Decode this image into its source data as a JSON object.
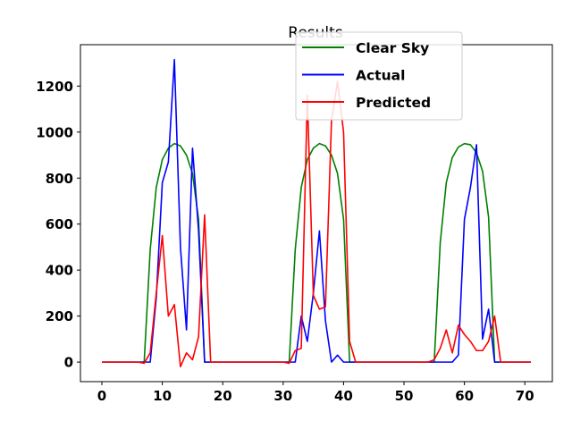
{
  "chart_data": {
    "type": "line",
    "title": "Results",
    "xlabel": "",
    "ylabel": "",
    "xlim": [
      -3.55,
      74.55
    ],
    "ylim": [
      -85,
      1380
    ],
    "xticks": [
      0,
      10,
      20,
      30,
      40,
      50,
      60,
      70
    ],
    "yticks": [
      0,
      200,
      400,
      600,
      800,
      1000,
      1200
    ],
    "legend_position": "top-right",
    "grid": false,
    "series": [
      {
        "name": "Clear Sky",
        "color": "#008000",
        "x": [
          0,
          1,
          2,
          3,
          4,
          5,
          6,
          7,
          8,
          9,
          10,
          11,
          12,
          13,
          14,
          15,
          16,
          17,
          18,
          19,
          20,
          21,
          22,
          23,
          24,
          25,
          26,
          27,
          28,
          29,
          30,
          31,
          32,
          33,
          34,
          35,
          36,
          37,
          38,
          39,
          40,
          41,
          42,
          43,
          44,
          45,
          46,
          47,
          48,
          49,
          50,
          51,
          52,
          53,
          54,
          55,
          56,
          57,
          58,
          59,
          60,
          61,
          62,
          63,
          64,
          65,
          66,
          67,
          68,
          69,
          70,
          71
        ],
        "values": [
          0,
          0,
          0,
          0,
          0,
          0,
          0,
          0,
          490,
          760,
          880,
          930,
          950,
          940,
          900,
          820,
          620,
          0,
          0,
          0,
          0,
          0,
          0,
          0,
          0,
          0,
          0,
          0,
          0,
          0,
          0,
          0,
          490,
          760,
          880,
          930,
          950,
          940,
          900,
          820,
          620,
          0,
          0,
          0,
          0,
          0,
          0,
          0,
          0,
          0,
          0,
          0,
          0,
          0,
          0,
          0,
          520,
          780,
          890,
          935,
          950,
          945,
          910,
          830,
          630,
          0,
          0,
          0,
          0,
          0,
          0,
          0
        ]
      },
      {
        "name": "Actual",
        "color": "#0000ff",
        "x": [
          0,
          1,
          2,
          3,
          4,
          5,
          6,
          7,
          8,
          9,
          10,
          11,
          12,
          13,
          14,
          15,
          16,
          17,
          18,
          19,
          20,
          21,
          22,
          23,
          24,
          25,
          26,
          27,
          28,
          29,
          30,
          31,
          32,
          33,
          34,
          35,
          36,
          37,
          38,
          39,
          40,
          41,
          42,
          43,
          44,
          45,
          46,
          47,
          48,
          49,
          50,
          51,
          52,
          53,
          54,
          55,
          56,
          57,
          58,
          59,
          60,
          61,
          62,
          63,
          64,
          65,
          66,
          67,
          68,
          69,
          70,
          71
        ],
        "values": [
          0,
          0,
          0,
          0,
          0,
          0,
          0,
          0,
          0,
          280,
          780,
          870,
          1315,
          500,
          140,
          930,
          570,
          0,
          0,
          0,
          0,
          0,
          0,
          0,
          0,
          0,
          0,
          0,
          0,
          0,
          0,
          0,
          0,
          200,
          90,
          300,
          570,
          180,
          0,
          30,
          0,
          0,
          0,
          0,
          0,
          0,
          0,
          0,
          0,
          0,
          0,
          0,
          0,
          0,
          0,
          0,
          0,
          0,
          0,
          30,
          620,
          760,
          945,
          100,
          230,
          0,
          0,
          0,
          0,
          0,
          0,
          0
        ]
      },
      {
        "name": "Predicted",
        "color": "#ff0000",
        "x": [
          0,
          1,
          2,
          3,
          4,
          5,
          6,
          7,
          8,
          9,
          10,
          11,
          12,
          13,
          14,
          15,
          16,
          17,
          18,
          19,
          20,
          21,
          22,
          23,
          24,
          25,
          26,
          27,
          28,
          29,
          30,
          31,
          32,
          33,
          34,
          35,
          36,
          37,
          38,
          39,
          40,
          41,
          42,
          43,
          44,
          45,
          46,
          47,
          48,
          49,
          50,
          51,
          52,
          53,
          54,
          55,
          56,
          57,
          58,
          59,
          60,
          61,
          62,
          63,
          64,
          65,
          66,
          67,
          68,
          69,
          70,
          71
        ],
        "values": [
          0,
          0,
          0,
          0,
          0,
          0,
          0,
          -5,
          40,
          300,
          550,
          200,
          250,
          -20,
          40,
          10,
          110,
          640,
          0,
          0,
          0,
          0,
          0,
          0,
          0,
          0,
          0,
          0,
          0,
          0,
          0,
          -5,
          50,
          60,
          1160,
          290,
          230,
          240,
          1050,
          1220,
          1000,
          90,
          0,
          0,
          0,
          0,
          0,
          0,
          0,
          0,
          0,
          0,
          0,
          0,
          0,
          10,
          60,
          140,
          40,
          160,
          120,
          90,
          50,
          50,
          90,
          200,
          0,
          0,
          0,
          0,
          0,
          0
        ]
      }
    ]
  }
}
